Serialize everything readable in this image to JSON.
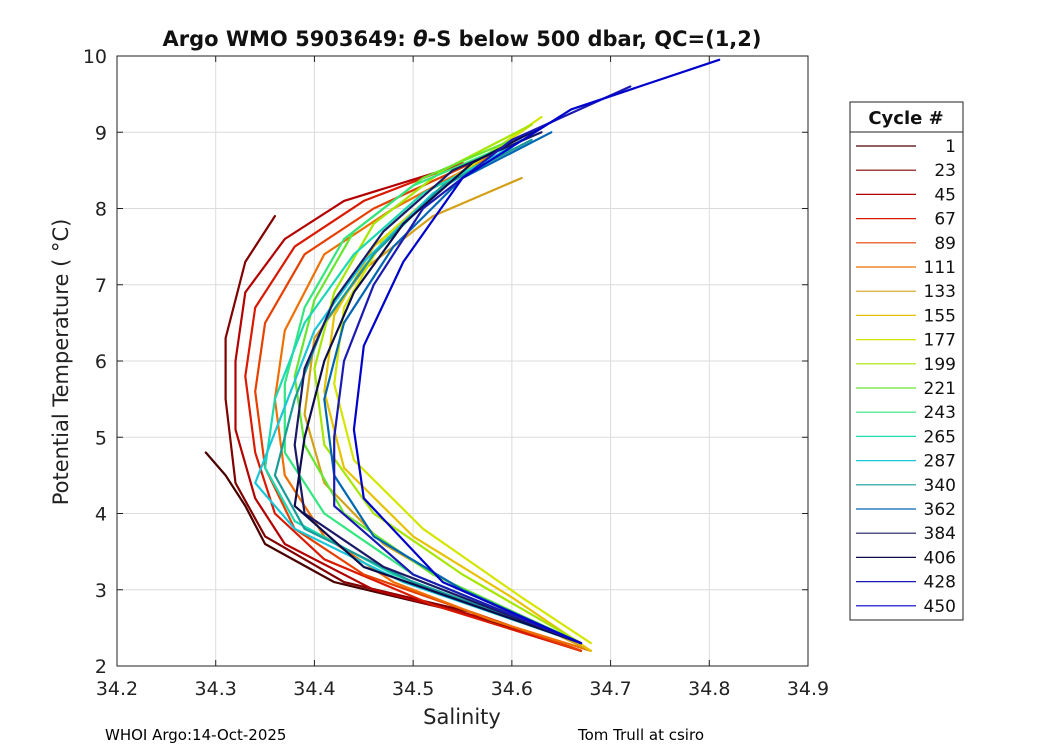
{
  "chart_data": {
    "type": "line",
    "title_prefix": "Argo WMO 5903649: ",
    "title_theta": "θ",
    "title_suffix": "-S below 500 dbar,  QC=(1,2)",
    "xlabel": "Salinity",
    "ylabel": "Potential Temperature ( °C)",
    "xlim": [
      34.2,
      34.9
    ],
    "ylim": [
      2,
      10
    ],
    "xticks": [
      34.2,
      34.3,
      34.4,
      34.5,
      34.6,
      34.7,
      34.8,
      34.9
    ],
    "xtick_labels": [
      "34.2",
      "34.3",
      "34.4",
      "34.5",
      "34.6",
      "34.7",
      "34.8",
      "34.9"
    ],
    "yticks": [
      2,
      3,
      4,
      5,
      6,
      7,
      8,
      9,
      10
    ],
    "ytick_labels": [
      "2",
      "3",
      "4",
      "5",
      "6",
      "7",
      "8",
      "9",
      "10"
    ],
    "grid": true,
    "legend_title": "Cycle #",
    "legend_position": "right",
    "series": [
      {
        "name": "1",
        "color": "#4a0000",
        "values": [
          [
            34.29,
            4.8
          ],
          [
            34.31,
            4.5
          ],
          [
            34.33,
            4.1
          ],
          [
            34.35,
            3.6
          ],
          [
            34.42,
            3.1
          ],
          [
            34.55,
            2.7
          ],
          [
            34.67,
            2.2
          ]
        ]
      },
      {
        "name": "23",
        "color": "#800000",
        "values": [
          [
            34.36,
            7.9
          ],
          [
            34.33,
            7.3
          ],
          [
            34.31,
            6.3
          ],
          [
            34.31,
            5.5
          ],
          [
            34.32,
            4.4
          ],
          [
            34.35,
            3.7
          ],
          [
            34.43,
            3.1
          ],
          [
            34.56,
            2.7
          ],
          [
            34.67,
            2.2
          ]
        ]
      },
      {
        "name": "45",
        "color": "#b30000",
        "values": [
          [
            34.53,
            8.5
          ],
          [
            34.43,
            8.1
          ],
          [
            34.37,
            7.6
          ],
          [
            34.33,
            6.9
          ],
          [
            34.32,
            6.0
          ],
          [
            34.32,
            5.1
          ],
          [
            34.34,
            4.2
          ],
          [
            34.37,
            3.6
          ],
          [
            34.46,
            3.0
          ],
          [
            34.58,
            2.6
          ],
          [
            34.67,
            2.2
          ]
        ]
      },
      {
        "name": "67",
        "color": "#d91a00",
        "values": [
          [
            34.55,
            8.6
          ],
          [
            34.45,
            8.1
          ],
          [
            34.38,
            7.5
          ],
          [
            34.34,
            6.7
          ],
          [
            34.33,
            5.8
          ],
          [
            34.34,
            4.8
          ],
          [
            34.36,
            4.0
          ],
          [
            34.41,
            3.4
          ],
          [
            34.52,
            2.8
          ],
          [
            34.67,
            2.2
          ]
        ]
      },
      {
        "name": "89",
        "color": "#e64000",
        "values": [
          [
            34.56,
            8.6
          ],
          [
            34.46,
            8.0
          ],
          [
            34.39,
            7.4
          ],
          [
            34.35,
            6.5
          ],
          [
            34.34,
            5.6
          ],
          [
            34.35,
            4.6
          ],
          [
            34.38,
            3.8
          ],
          [
            34.45,
            3.2
          ],
          [
            34.56,
            2.7
          ],
          [
            34.67,
            2.2
          ]
        ]
      },
      {
        "name": "111",
        "color": "#ee7000",
        "values": [
          [
            34.58,
            8.7
          ],
          [
            34.48,
            8.0
          ],
          [
            34.41,
            7.4
          ],
          [
            34.37,
            6.4
          ],
          [
            34.36,
            5.5
          ],
          [
            34.37,
            4.5
          ],
          [
            34.41,
            3.7
          ],
          [
            34.48,
            3.1
          ],
          [
            34.58,
            2.6
          ],
          [
            34.68,
            2.2
          ]
        ]
      },
      {
        "name": "133",
        "color": "#d4a017",
        "values": [
          [
            34.61,
            8.4
          ],
          [
            34.52,
            7.9
          ],
          [
            34.45,
            7.2
          ],
          [
            34.4,
            6.3
          ],
          [
            34.39,
            5.3
          ],
          [
            34.41,
            4.4
          ],
          [
            34.47,
            3.6
          ],
          [
            34.55,
            3.0
          ],
          [
            34.68,
            2.2
          ]
        ]
      },
      {
        "name": "155",
        "color": "#e6c200",
        "values": [
          [
            34.62,
            9.1
          ],
          [
            34.53,
            8.3
          ],
          [
            34.46,
            7.5
          ],
          [
            34.42,
            6.6
          ],
          [
            34.41,
            5.6
          ],
          [
            34.43,
            4.6
          ],
          [
            34.5,
            3.7
          ],
          [
            34.6,
            2.9
          ],
          [
            34.68,
            2.2
          ]
        ]
      },
      {
        "name": "177",
        "color": "#d4e600",
        "values": [
          [
            34.63,
            9.2
          ],
          [
            34.54,
            8.4
          ],
          [
            34.47,
            7.6
          ],
          [
            34.43,
            6.7
          ],
          [
            34.42,
            5.7
          ],
          [
            34.44,
            4.7
          ],
          [
            34.51,
            3.8
          ],
          [
            34.61,
            2.9
          ],
          [
            34.68,
            2.3
          ]
        ]
      },
      {
        "name": "199",
        "color": "#a6e600",
        "values": [
          [
            34.62,
            9.1
          ],
          [
            34.53,
            8.5
          ],
          [
            34.46,
            7.8
          ],
          [
            34.42,
            6.9
          ],
          [
            34.4,
            5.9
          ],
          [
            34.41,
            4.9
          ],
          [
            34.46,
            4.0
          ],
          [
            34.55,
            3.2
          ],
          [
            34.67,
            2.3
          ]
        ]
      },
      {
        "name": "221",
        "color": "#66e630",
        "values": [
          [
            34.6,
            8.9
          ],
          [
            34.51,
            8.4
          ],
          [
            34.44,
            7.7
          ],
          [
            34.4,
            6.8
          ],
          [
            34.38,
            5.8
          ],
          [
            34.39,
            4.9
          ],
          [
            34.43,
            4.0
          ],
          [
            34.52,
            3.2
          ],
          [
            34.67,
            2.3
          ]
        ]
      },
      {
        "name": "243",
        "color": "#33e680",
        "values": [
          [
            34.59,
            8.8
          ],
          [
            34.5,
            8.3
          ],
          [
            34.43,
            7.6
          ],
          [
            34.39,
            6.7
          ],
          [
            34.37,
            5.7
          ],
          [
            34.37,
            4.8
          ],
          [
            34.41,
            4.0
          ],
          [
            34.5,
            3.2
          ],
          [
            34.67,
            2.3
          ]
        ]
      },
      {
        "name": "265",
        "color": "#1ad9b3",
        "values": [
          [
            34.6,
            8.8
          ],
          [
            34.51,
            8.2
          ],
          [
            34.44,
            7.4
          ],
          [
            34.39,
            6.5
          ],
          [
            34.36,
            5.5
          ],
          [
            34.35,
            4.6
          ],
          [
            34.38,
            3.9
          ],
          [
            34.48,
            3.2
          ],
          [
            34.67,
            2.3
          ]
        ]
      },
      {
        "name": "287",
        "color": "#1ac6d9",
        "values": [
          [
            34.61,
            8.9
          ],
          [
            34.52,
            8.2
          ],
          [
            34.45,
            7.3
          ],
          [
            34.4,
            6.4
          ],
          [
            34.37,
            5.4
          ],
          [
            34.34,
            4.4
          ],
          [
            34.38,
            3.8
          ],
          [
            34.49,
            3.1
          ],
          [
            34.67,
            2.3
          ]
        ]
      },
      {
        "name": "340",
        "color": "#1a9999",
        "values": [
          [
            34.62,
            8.9
          ],
          [
            34.53,
            8.3
          ],
          [
            34.46,
            7.4
          ],
          [
            34.41,
            6.5
          ],
          [
            34.38,
            5.5
          ],
          [
            34.36,
            4.5
          ],
          [
            34.39,
            3.8
          ],
          [
            34.5,
            3.1
          ],
          [
            34.67,
            2.3
          ]
        ]
      },
      {
        "name": "362",
        "color": "#0066b3",
        "values": [
          [
            34.64,
            9.0
          ],
          [
            34.55,
            8.4
          ],
          [
            34.48,
            7.5
          ],
          [
            34.43,
            6.5
          ],
          [
            34.41,
            5.5
          ],
          [
            34.42,
            4.5
          ],
          [
            34.46,
            3.7
          ],
          [
            34.55,
            3.0
          ],
          [
            34.67,
            2.3
          ]
        ]
      },
      {
        "name": "384",
        "color": "#1a1a66",
        "values": [
          [
            34.63,
            9.0
          ],
          [
            34.54,
            8.5
          ],
          [
            34.47,
            7.7
          ],
          [
            34.42,
            6.8
          ],
          [
            34.39,
            5.9
          ],
          [
            34.38,
            4.9
          ],
          [
            34.39,
            4.0
          ],
          [
            34.47,
            3.3
          ],
          [
            34.67,
            2.3
          ]
        ]
      },
      {
        "name": "406",
        "color": "#0d0d4d",
        "values": [
          [
            34.65,
            9.2
          ],
          [
            34.56,
            8.6
          ],
          [
            34.49,
            7.8
          ],
          [
            34.44,
            6.9
          ],
          [
            34.41,
            6.0
          ],
          [
            34.39,
            5.0
          ],
          [
            34.38,
            4.1
          ],
          [
            34.45,
            3.3
          ],
          [
            34.67,
            2.3
          ]
        ]
      },
      {
        "name": "428",
        "color": "#1a1ab3",
        "values": [
          [
            34.72,
            9.6
          ],
          [
            34.6,
            8.9
          ],
          [
            34.51,
            8.0
          ],
          [
            34.46,
            7.0
          ],
          [
            34.43,
            6.0
          ],
          [
            34.42,
            5.0
          ],
          [
            34.42,
            4.1
          ],
          [
            34.5,
            3.2
          ],
          [
            34.67,
            2.3
          ]
        ]
      },
      {
        "name": "450",
        "color": "#0000cc",
        "values": [
          [
            34.81,
            9.95
          ],
          [
            34.66,
            9.3
          ],
          [
            34.55,
            8.4
          ],
          [
            34.49,
            7.3
          ],
          [
            34.45,
            6.2
          ],
          [
            34.44,
            5.1
          ],
          [
            34.45,
            4.2
          ],
          [
            34.53,
            3.1
          ],
          [
            34.67,
            2.3
          ]
        ]
      }
    ]
  },
  "footer": {
    "left": "WHOI Argo:14-Oct-2025",
    "right": "Tom Trull at csiro"
  }
}
